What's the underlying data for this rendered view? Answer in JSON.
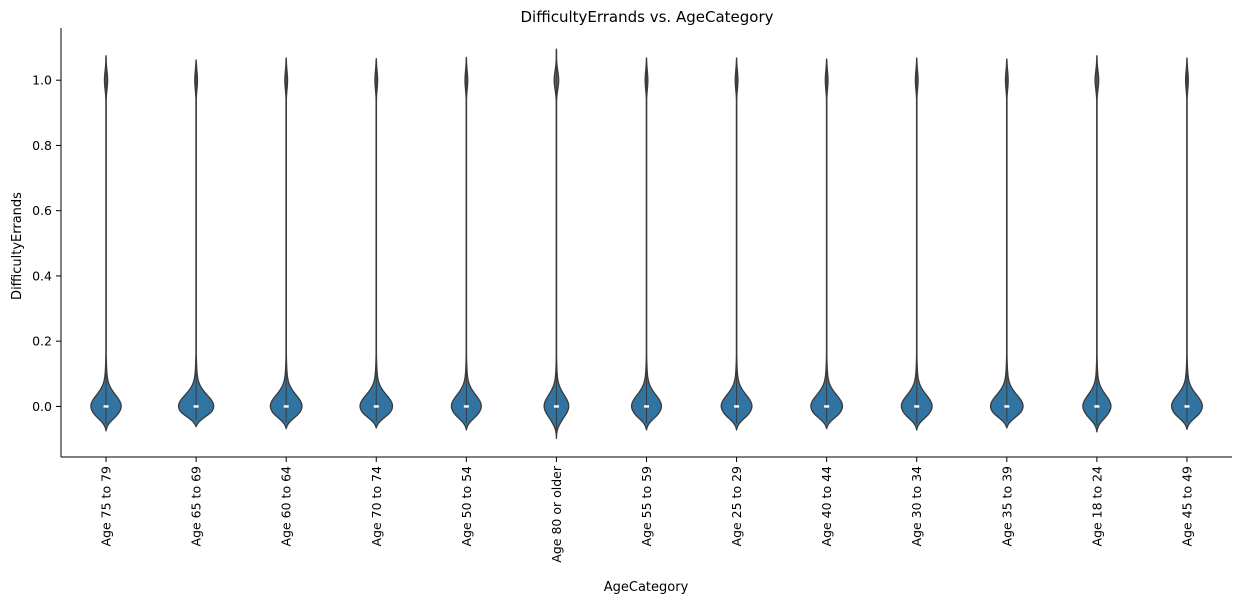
{
  "chart_data": {
    "type": "violin",
    "title": "DifficultyErrands vs. AgeCategory",
    "xlabel": "AgeCategory",
    "ylabel": "DifficultyErrands",
    "ylim": [
      -0.155,
      1.16
    ],
    "yticks": [
      0.0,
      0.2,
      0.4,
      0.6,
      0.8,
      1.0
    ],
    "ytick_labels": [
      "0.0",
      "0.2",
      "0.4",
      "0.6",
      "0.8",
      "1.0"
    ],
    "fill_color": "#3274a1",
    "edge_color": "#3a3a3a",
    "median_color": "#ffffff",
    "categories": [
      "Age 75 to 79",
      "Age 65 to 69",
      "Age 60 to 64",
      "Age 70 to 74",
      "Age 50 to 54",
      "Age 80 or older",
      "Age 55 to 59",
      "Age 25 to 29",
      "Age 40 to 44",
      "Age 30 to 34",
      "Age 35 to 39",
      "Age 18 to 24",
      "Age 45 to 49"
    ],
    "violins": [
      {
        "category": "Age 75 to 79",
        "y_min": -0.075,
        "y_max": 1.075,
        "width_at_0": 0.345,
        "width_at_1": 0.035,
        "median": 0.0
      },
      {
        "category": "Age 65 to 69",
        "y_min": -0.062,
        "y_max": 1.062,
        "width_at_0": 0.4,
        "width_at_1": 0.03,
        "median": 0.0
      },
      {
        "category": "Age 60 to 64",
        "y_min": -0.068,
        "y_max": 1.068,
        "width_at_0": 0.36,
        "width_at_1": 0.03,
        "median": 0.0
      },
      {
        "category": "Age 70 to 74",
        "y_min": -0.066,
        "y_max": 1.066,
        "width_at_0": 0.37,
        "width_at_1": 0.03,
        "median": 0.0
      },
      {
        "category": "Age 50 to 54",
        "y_min": -0.072,
        "y_max": 1.07,
        "width_at_0": 0.34,
        "width_at_1": 0.03,
        "median": 0.0
      },
      {
        "category": "Age 80 or older",
        "y_min": -0.098,
        "y_max": 1.095,
        "width_at_0": 0.28,
        "width_at_1": 0.05,
        "median": 0.0
      },
      {
        "category": "Age 55 to 59",
        "y_min": -0.072,
        "y_max": 1.068,
        "width_at_0": 0.34,
        "width_at_1": 0.03,
        "median": 0.0
      },
      {
        "category": "Age 25 to 29",
        "y_min": -0.072,
        "y_max": 1.068,
        "width_at_0": 0.35,
        "width_at_1": 0.03,
        "median": 0.0
      },
      {
        "category": "Age 40 to 44",
        "y_min": -0.068,
        "y_max": 1.065,
        "width_at_0": 0.36,
        "width_at_1": 0.03,
        "median": 0.0
      },
      {
        "category": "Age 30 to 34",
        "y_min": -0.072,
        "y_max": 1.068,
        "width_at_0": 0.35,
        "width_at_1": 0.03,
        "median": 0.0
      },
      {
        "category": "Age 35 to 39",
        "y_min": -0.066,
        "y_max": 1.065,
        "width_at_0": 0.37,
        "width_at_1": 0.03,
        "median": 0.0
      },
      {
        "category": "Age 18 to 24",
        "y_min": -0.078,
        "y_max": 1.075,
        "width_at_0": 0.32,
        "width_at_1": 0.04,
        "median": 0.0
      },
      {
        "category": "Age 45 to 49",
        "y_min": -0.07,
        "y_max": 1.068,
        "width_at_0": 0.35,
        "width_at_1": 0.03,
        "median": 0.0
      }
    ],
    "grid": false,
    "legend": "none"
  }
}
